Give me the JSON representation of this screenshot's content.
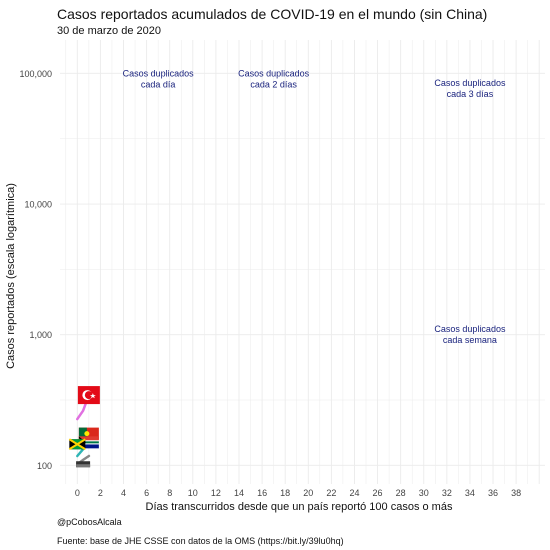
{
  "chart_data": {
    "type": "line",
    "title": "Casos reportados acumulados de COVID-19 en el mundo (sin China)",
    "subtitle": "30 de marzo de 2020",
    "xlabel": "Días transcurridos desde que un país reportó 100 casos o más",
    "ylabel": "Casos reportados (escala logarítmica)",
    "y_scale": "log10",
    "xlim": [
      -1.5,
      40.5
    ],
    "ylim": [
      72,
      180000
    ],
    "x_ticks": [
      0,
      2,
      4,
      6,
      8,
      10,
      12,
      14,
      16,
      18,
      20,
      22,
      24,
      26,
      28,
      30,
      32,
      34,
      36,
      38
    ],
    "y_ticks": [
      100,
      1000,
      10000,
      100000
    ],
    "y_tick_labels": [
      "100",
      "1,000",
      "10,000",
      "100,000"
    ],
    "grid": true,
    "reference_labels": [
      {
        "text": "Casos duplicados\ncada día",
        "x": 7,
        "y": 95000
      },
      {
        "text": "Casos duplicados\ncada 2 días",
        "x": 17,
        "y": 95000
      },
      {
        "text": "Casos duplicados\ncada 3 días",
        "x": 34,
        "y": 80000
      },
      {
        "text": "Casos duplicados\ncada semana",
        "x": 34,
        "y": 1050
      }
    ],
    "series": [
      {
        "color": "#e070e0",
        "points": [
          [
            0,
            226
          ],
          [
            0.5,
            262
          ],
          [
            1,
            345
          ]
        ]
      },
      {
        "color": "#2fb5b5",
        "points": [
          [
            0,
            118
          ],
          [
            0.5,
            133
          ],
          [
            1,
            147
          ]
        ]
      },
      {
        "color": "#888888",
        "points": [
          [
            0,
            102
          ],
          [
            0.5,
            110
          ],
          [
            1,
            118
          ]
        ]
      }
    ],
    "flag_markers": [
      {
        "flag": "turkey",
        "x": 1,
        "y": 345
      },
      {
        "flag": "portugal",
        "x": 1,
        "y": 175
      },
      {
        "flag": "south-africa",
        "x": 1,
        "y": 150
      },
      {
        "flag": "jamaica",
        "x": 0,
        "y": 145
      },
      {
        "flag": "generic-dark",
        "x": 0.5,
        "y": 102
      }
    ]
  },
  "footer": {
    "author": "@pCobosAlcala",
    "source": "Fuente: base de JHE CSSE con datos de la OMS (https://bit.ly/39lu0hq)"
  },
  "colors": {
    "grid": "#ebebeb",
    "reference_text": "#1a237e",
    "axis_text": "#444444"
  }
}
